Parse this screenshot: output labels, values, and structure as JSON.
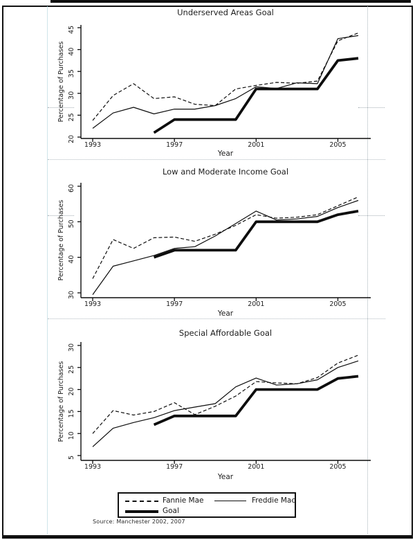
{
  "page": {
    "source_note": "Source: Manchester 2002, 2007"
  },
  "legend": {
    "entries": [
      {
        "label": "Fannie Mae",
        "style": "dashed"
      },
      {
        "label": "Freddie Mac",
        "style": "solid"
      },
      {
        "label": "Goal",
        "style": "thick"
      }
    ]
  },
  "colors": {
    "line": "#0d0d0d",
    "text": "#1c1c1c",
    "frame": "#111111",
    "guide_left": "#9ec9d4",
    "guide_right": "#a8b4ba"
  },
  "chart_data": [
    {
      "type": "line",
      "title": "Underserved Areas Goal",
      "xlabel": "Year",
      "ylabel": "Percentage of Purchases",
      "ylim": [
        20,
        45
      ],
      "yticks": [
        20,
        25,
        30,
        35,
        40,
        45
      ],
      "xticks": [
        1993,
        1997,
        2001,
        2005
      ],
      "x": [
        1993,
        1994,
        1995,
        1996,
        1997,
        1998,
        1999,
        2000,
        2001,
        2002,
        2003,
        2004,
        2005,
        2006
      ],
      "legend_position": "bottom",
      "grid": false,
      "series": [
        {
          "name": "Fannie Mae",
          "style": "dashed",
          "values": [
            23.8,
            29.5,
            32.2,
            28.8,
            29.2,
            27.5,
            27.2,
            31,
            31.8,
            32.5,
            32.3,
            32.8,
            42,
            43.8
          ]
        },
        {
          "name": "Freddie Mac",
          "style": "solid",
          "values": [
            22,
            25.5,
            26.8,
            25.3,
            26.4,
            26.4,
            27.2,
            28.8,
            31.5,
            31.1,
            32.4,
            32.2,
            42.5,
            43.2
          ]
        },
        {
          "name": "Goal",
          "style": "thick",
          "values": [
            null,
            null,
            null,
            21,
            24,
            24,
            24,
            24,
            31,
            31,
            31,
            31,
            37.5,
            38
          ]
        }
      ]
    },
    {
      "type": "line",
      "title": "Low and Moderate Income Goal",
      "xlabel": "Year",
      "ylabel": "Percentage of Purchases",
      "ylim": [
        28,
        60
      ],
      "yticks": [
        30,
        40,
        50,
        60
      ],
      "xticks": [
        1993,
        1997,
        2001,
        2005
      ],
      "x": [
        1993,
        1994,
        1995,
        1996,
        1997,
        1998,
        1999,
        2000,
        2001,
        2002,
        2003,
        2004,
        2005,
        2006
      ],
      "legend_position": "bottom",
      "grid": false,
      "series": [
        {
          "name": "Fannie Mae",
          "style": "dashed",
          "values": [
            34,
            45,
            42.5,
            45.5,
            45.7,
            44.5,
            46.5,
            49,
            52,
            51,
            51.3,
            52,
            54.5,
            57
          ]
        },
        {
          "name": "Freddie Mac",
          "style": "solid",
          "values": [
            29.5,
            37.5,
            39,
            40.5,
            42.5,
            43,
            46,
            49.5,
            53,
            50.5,
            50.8,
            51.5,
            54,
            56
          ]
        },
        {
          "name": "Goal",
          "style": "thick",
          "values": [
            null,
            null,
            null,
            40,
            42,
            42,
            42,
            42,
            50,
            50,
            50,
            50,
            52,
            53
          ]
        }
      ]
    },
    {
      "type": "line",
      "title": "Special Affordable Goal",
      "xlabel": "Year",
      "ylabel": "Percentage of Purchases",
      "ylim": [
        4,
        31
      ],
      "yticks": [
        5,
        10,
        15,
        20,
        25,
        30
      ],
      "xticks": [
        1993,
        1997,
        2001,
        2005
      ],
      "x": [
        1993,
        1994,
        1995,
        1996,
        1997,
        1998,
        1999,
        2000,
        2001,
        2002,
        2003,
        2004,
        2005,
        2006
      ],
      "legend_position": "bottom",
      "grid": false,
      "series": [
        {
          "name": "Fannie Mae",
          "style": "dashed",
          "values": [
            10,
            15.2,
            14.2,
            15,
            17,
            14.3,
            16.2,
            18.5,
            21.8,
            21.5,
            21.3,
            22.7,
            26,
            27.8
          ]
        },
        {
          "name": "Freddie Mac",
          "style": "solid",
          "values": [
            7,
            11.2,
            12.5,
            13.6,
            15.2,
            16,
            16.8,
            20.6,
            22.6,
            21,
            21.3,
            22.2,
            25,
            26.5
          ]
        },
        {
          "name": "Goal",
          "style": "thick",
          "values": [
            null,
            null,
            null,
            12,
            14,
            14,
            14,
            14,
            20,
            20,
            20,
            20,
            22.5,
            23
          ]
        }
      ]
    }
  ]
}
